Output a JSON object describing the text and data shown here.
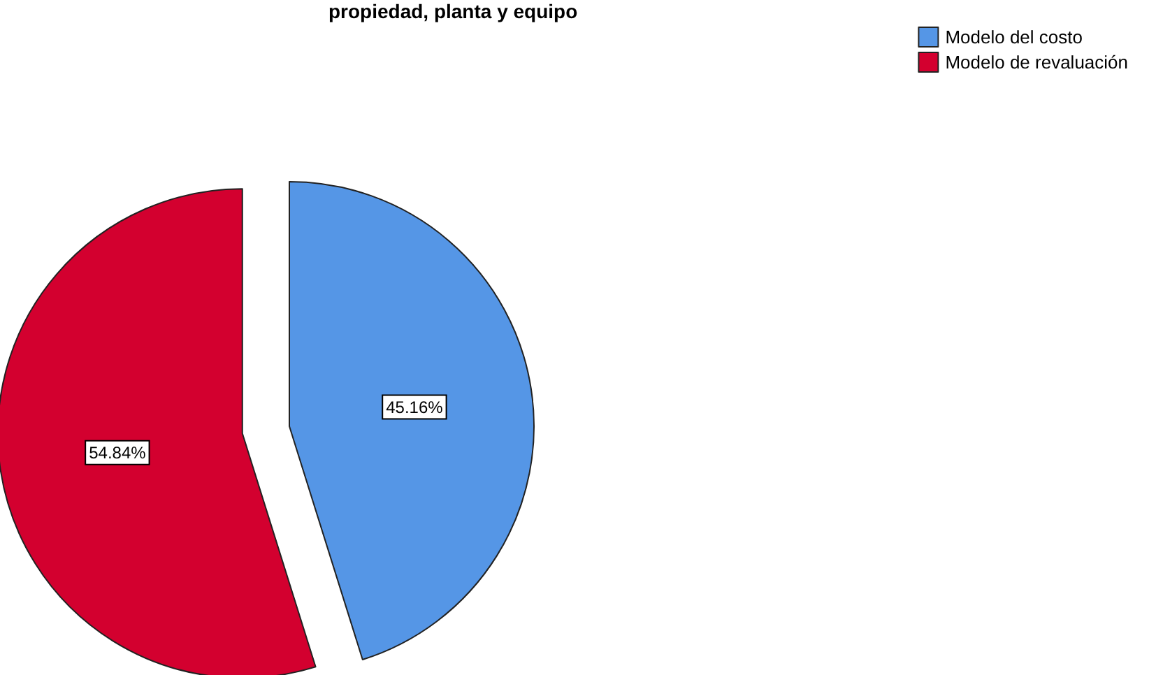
{
  "chart_data": {
    "type": "pie",
    "title": "propiedad, planta y equipo",
    "categories": [
      "Modelo del costo",
      "Modelo de revaluación"
    ],
    "values": [
      45.16,
      54.84
    ],
    "colors": [
      "#5596e6",
      "#d3002f"
    ],
    "value_labels": [
      "45.16%",
      "54.84%"
    ],
    "legend": "top right"
  }
}
